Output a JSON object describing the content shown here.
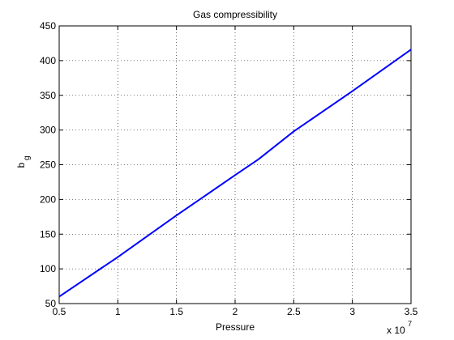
{
  "chart_data": {
    "type": "line",
    "title": "Gas compressibility",
    "xlabel": "Pressure",
    "ylabel": "b",
    "ylabel_subscript": "g",
    "x_scale_label": "x 10",
    "x_scale_exponent": "7",
    "x": [
      0.5,
      1.0,
      1.5,
      2.0,
      2.2,
      2.5,
      3.0,
      3.5
    ],
    "values": [
      60,
      117,
      177,
      235,
      258,
      298,
      356,
      416
    ],
    "color": "#0000ff",
    "xlim": [
      0.5,
      3.5
    ],
    "xticks": [
      0.5,
      1,
      1.5,
      2,
      2.5,
      3,
      3.5
    ],
    "ylim": [
      50,
      450
    ],
    "yticks": [
      50,
      100,
      150,
      200,
      250,
      300,
      350,
      400,
      450
    ],
    "grid": true
  }
}
